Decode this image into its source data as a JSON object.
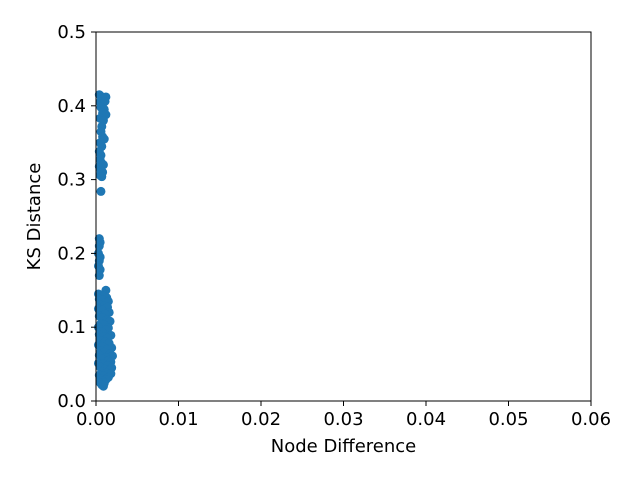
{
  "chart_data": {
    "type": "scatter",
    "title": "",
    "xlabel": "Node Difference",
    "ylabel": "KS Distance",
    "xlim": [
      0,
      0.06
    ],
    "ylim": [
      0,
      0.5
    ],
    "xticks": [
      {
        "value": 0,
        "label": "0.00"
      },
      {
        "value": 0.01,
        "label": "0.01"
      },
      {
        "value": 0.02,
        "label": "0.02"
      },
      {
        "value": 0.03,
        "label": "0.03"
      },
      {
        "value": 0.04,
        "label": "0.04"
      },
      {
        "value": 0.05,
        "label": "0.05"
      },
      {
        "value": 0.06,
        "label": "0.06"
      }
    ],
    "yticks": [
      {
        "value": 0,
        "label": "0.0"
      },
      {
        "value": 0.1,
        "label": "0.1"
      },
      {
        "value": 0.2,
        "label": "0.2"
      },
      {
        "value": 0.3,
        "label": "0.3"
      },
      {
        "value": 0.4,
        "label": "0.4"
      },
      {
        "value": 0.5,
        "label": "0.5"
      }
    ],
    "grid": false,
    "legend": "none",
    "marker_color": "#1f77b4",
    "series": [
      {
        "points": [
          {
            "x": 0.0004,
            "y": 0.415
          },
          {
            "x": 0.0006,
            "y": 0.413
          },
          {
            "x": 0.0008,
            "y": 0.411
          },
          {
            "x": 0.001,
            "y": 0.41
          },
          {
            "x": 0.0012,
            "y": 0.412
          },
          {
            "x": 0.0005,
            "y": 0.405
          },
          {
            "x": 0.0009,
            "y": 0.404
          },
          {
            "x": 0.0011,
            "y": 0.406
          },
          {
            "x": 0.0006,
            "y": 0.398
          },
          {
            "x": 0.001,
            "y": 0.395
          },
          {
            "x": 0.0008,
            "y": 0.39
          },
          {
            "x": 0.0012,
            "y": 0.388
          },
          {
            "x": 0.0005,
            "y": 0.383
          },
          {
            "x": 0.0009,
            "y": 0.38
          },
          {
            "x": 0.0007,
            "y": 0.372
          },
          {
            "x": 0.0006,
            "y": 0.365
          },
          {
            "x": 0.0008,
            "y": 0.358
          },
          {
            "x": 0.001,
            "y": 0.355
          },
          {
            "x": 0.0005,
            "y": 0.35
          },
          {
            "x": 0.0007,
            "y": 0.345
          },
          {
            "x": 0.0004,
            "y": 0.338
          },
          {
            "x": 0.0006,
            "y": 0.333
          },
          {
            "x": 0.0005,
            "y": 0.327
          },
          {
            "x": 0.0007,
            "y": 0.322
          },
          {
            "x": 0.0004,
            "y": 0.318
          },
          {
            "x": 0.0009,
            "y": 0.32
          },
          {
            "x": 0.0006,
            "y": 0.312
          },
          {
            "x": 0.0008,
            "y": 0.31
          },
          {
            "x": 0.0005,
            "y": 0.306
          },
          {
            "x": 0.0007,
            "y": 0.304
          },
          {
            "x": 0.0006,
            "y": 0.284
          },
          {
            "x": 0.0004,
            "y": 0.22
          },
          {
            "x": 0.0005,
            "y": 0.215
          },
          {
            "x": 0.0004,
            "y": 0.21
          },
          {
            "x": 0.0003,
            "y": 0.2
          },
          {
            "x": 0.0005,
            "y": 0.195
          },
          {
            "x": 0.0004,
            "y": 0.19
          },
          {
            "x": 0.0003,
            "y": 0.183
          },
          {
            "x": 0.0005,
            "y": 0.178
          },
          {
            "x": 0.0004,
            "y": 0.17
          },
          {
            "x": 0.0012,
            "y": 0.15
          },
          {
            "x": 0.0003,
            "y": 0.145
          },
          {
            "x": 0.0006,
            "y": 0.143
          },
          {
            "x": 0.0009,
            "y": 0.142
          },
          {
            "x": 0.0013,
            "y": 0.14
          },
          {
            "x": 0.0004,
            "y": 0.138
          },
          {
            "x": 0.0008,
            "y": 0.137
          },
          {
            "x": 0.0015,
            "y": 0.135
          },
          {
            "x": 0.0005,
            "y": 0.13
          },
          {
            "x": 0.001,
            "y": 0.129
          },
          {
            "x": 0.0014,
            "y": 0.127
          },
          {
            "x": 0.0003,
            "y": 0.125
          },
          {
            "x": 0.0007,
            "y": 0.123
          },
          {
            "x": 0.0016,
            "y": 0.12
          },
          {
            "x": 0.0011,
            "y": 0.118
          },
          {
            "x": 0.0004,
            "y": 0.115
          },
          {
            "x": 0.0008,
            "y": 0.113
          },
          {
            "x": 0.0013,
            "y": 0.11
          },
          {
            "x": 0.0017,
            "y": 0.108
          },
          {
            "x": 0.0006,
            "y": 0.105
          },
          {
            "x": 0.001,
            "y": 0.103
          },
          {
            "x": 0.0003,
            "y": 0.1
          },
          {
            "x": 0.0015,
            "y": 0.099
          },
          {
            "x": 0.0012,
            "y": 0.096
          },
          {
            "x": 0.0007,
            "y": 0.094
          },
          {
            "x": 0.0004,
            "y": 0.09
          },
          {
            "x": 0.0018,
            "y": 0.089
          },
          {
            "x": 0.0009,
            "y": 0.087
          },
          {
            "x": 0.0014,
            "y": 0.085
          },
          {
            "x": 0.0005,
            "y": 0.082
          },
          {
            "x": 0.0011,
            "y": 0.08
          },
          {
            "x": 0.0016,
            "y": 0.078
          },
          {
            "x": 0.0003,
            "y": 0.076
          },
          {
            "x": 0.0008,
            "y": 0.074
          },
          {
            "x": 0.0019,
            "y": 0.072
          },
          {
            "x": 0.0013,
            "y": 0.07
          },
          {
            "x": 0.0006,
            "y": 0.068
          },
          {
            "x": 0.001,
            "y": 0.066
          },
          {
            "x": 0.0017,
            "y": 0.064
          },
          {
            "x": 0.0004,
            "y": 0.062
          },
          {
            "x": 0.002,
            "y": 0.061
          },
          {
            "x": 0.0012,
            "y": 0.059
          },
          {
            "x": 0.0007,
            "y": 0.057
          },
          {
            "x": 0.0015,
            "y": 0.055
          },
          {
            "x": 0.0018,
            "y": 0.053
          },
          {
            "x": 0.0003,
            "y": 0.051
          },
          {
            "x": 0.0009,
            "y": 0.05
          },
          {
            "x": 0.0014,
            "y": 0.048
          },
          {
            "x": 0.0005,
            "y": 0.046
          },
          {
            "x": 0.0019,
            "y": 0.045
          },
          {
            "x": 0.0011,
            "y": 0.043
          },
          {
            "x": 0.0016,
            "y": 0.041
          },
          {
            "x": 0.0007,
            "y": 0.04
          },
          {
            "x": 0.0013,
            "y": 0.038
          },
          {
            "x": 0.0018,
            "y": 0.037
          },
          {
            "x": 0.0004,
            "y": 0.035
          },
          {
            "x": 0.001,
            "y": 0.034
          },
          {
            "x": 0.0015,
            "y": 0.032
          },
          {
            "x": 0.0006,
            "y": 0.03
          },
          {
            "x": 0.0012,
            "y": 0.029
          },
          {
            "x": 0.0008,
            "y": 0.027
          },
          {
            "x": 0.0005,
            "y": 0.025
          },
          {
            "x": 0.001,
            "y": 0.024
          },
          {
            "x": 0.0007,
            "y": 0.022
          },
          {
            "x": 0.0009,
            "y": 0.02
          }
        ]
      }
    ]
  }
}
